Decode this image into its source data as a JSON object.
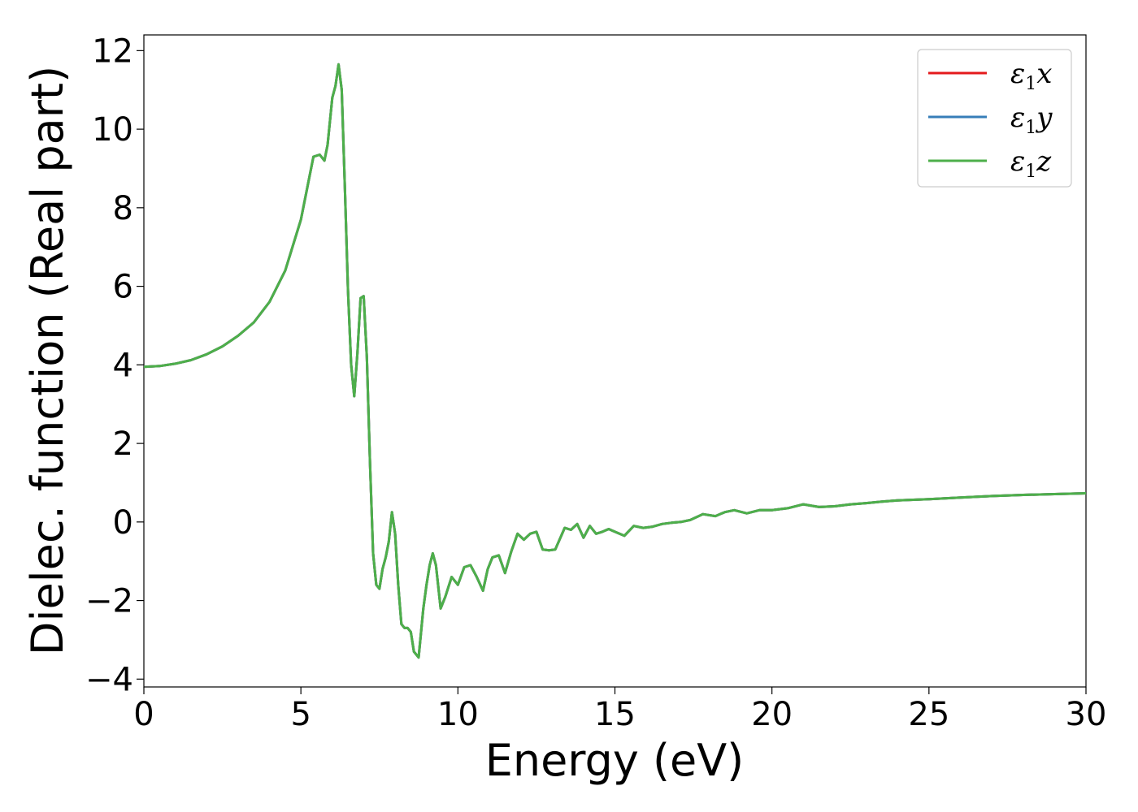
{
  "chart_data": {
    "type": "line",
    "xlabel": "Energy (eV)",
    "ylabel": "Dielec. function (Real part)",
    "xlim": [
      0,
      30
    ],
    "ylim": [
      -4.2,
      12.4
    ],
    "xticks": [
      0,
      5,
      10,
      15,
      20,
      25,
      30
    ],
    "yticks": [
      -4,
      -2,
      0,
      2,
      4,
      6,
      8,
      10,
      12
    ],
    "xtick_labels": [
      "0",
      "5",
      "10",
      "15",
      "20",
      "25",
      "30"
    ],
    "ytick_labels": [
      "−4",
      "−2",
      "0",
      "2",
      "4",
      "6",
      "8",
      "10",
      "12"
    ],
    "grid": false,
    "legend_position": "top-right",
    "x": [
      0,
      0.5,
      1,
      1.5,
      2,
      2.5,
      3,
      3.5,
      4,
      4.5,
      5,
      5.2,
      5.4,
      5.6,
      5.75,
      5.85,
      6.0,
      6.1,
      6.2,
      6.3,
      6.4,
      6.5,
      6.6,
      6.7,
      6.8,
      6.9,
      7.0,
      7.1,
      7.2,
      7.3,
      7.4,
      7.5,
      7.6,
      7.7,
      7.8,
      7.9,
      8.0,
      8.1,
      8.2,
      8.3,
      8.4,
      8.5,
      8.6,
      8.75,
      8.9,
      9.0,
      9.1,
      9.2,
      9.3,
      9.45,
      9.6,
      9.8,
      10.0,
      10.2,
      10.4,
      10.6,
      10.8,
      10.95,
      11.1,
      11.3,
      11.5,
      11.7,
      11.9,
      12.1,
      12.3,
      12.5,
      12.7,
      12.9,
      13.1,
      13.4,
      13.6,
      13.8,
      14.0,
      14.2,
      14.4,
      14.6,
      14.8,
      15.0,
      15.3,
      15.6,
      15.9,
      16.2,
      16.5,
      16.8,
      17.1,
      17.4,
      17.8,
      18.2,
      18.5,
      18.8,
      19.2,
      19.6,
      20.0,
      20.5,
      21.0,
      21.5,
      22.0,
      22.5,
      23.0,
      23.5,
      24.0,
      25.0,
      25.5,
      26.0,
      27.0,
      28.0,
      29.0,
      30.0
    ],
    "series": [
      {
        "name": "ε₁x",
        "color": "#e41a1c",
        "values": [
          3.95,
          3.97,
          4.03,
          4.12,
          4.27,
          4.47,
          4.74,
          5.08,
          5.6,
          6.4,
          7.7,
          8.5,
          9.3,
          9.35,
          9.2,
          9.6,
          10.8,
          11.1,
          11.65,
          11.0,
          8.5,
          5.9,
          4.0,
          3.2,
          4.3,
          5.7,
          5.75,
          4.2,
          1.5,
          -0.8,
          -1.6,
          -1.7,
          -1.2,
          -0.9,
          -0.5,
          0.25,
          -0.3,
          -1.6,
          -2.6,
          -2.7,
          -2.7,
          -2.8,
          -3.3,
          -3.45,
          -2.2,
          -1.6,
          -1.1,
          -0.8,
          -1.1,
          -2.2,
          -1.9,
          -1.4,
          -1.6,
          -1.15,
          -1.1,
          -1.4,
          -1.75,
          -1.2,
          -0.9,
          -0.85,
          -1.3,
          -0.75,
          -0.3,
          -0.45,
          -0.3,
          -0.25,
          -0.7,
          -0.72,
          -0.7,
          -0.15,
          -0.2,
          -0.05,
          -0.4,
          -0.1,
          -0.3,
          -0.25,
          -0.18,
          -0.25,
          -0.35,
          -0.1,
          -0.15,
          -0.12,
          -0.05,
          -0.02,
          0.0,
          0.05,
          0.2,
          0.15,
          0.25,
          0.3,
          0.22,
          0.3,
          0.3,
          0.35,
          0.45,
          0.38,
          0.4,
          0.45,
          0.48,
          0.52,
          0.55,
          0.58,
          0.6,
          0.62,
          0.66,
          0.69,
          0.71,
          0.73
        ]
      },
      {
        "name": "ε₁y",
        "color": "#377eb8",
        "values": [
          3.95,
          3.97,
          4.03,
          4.12,
          4.27,
          4.47,
          4.74,
          5.08,
          5.6,
          6.4,
          7.7,
          8.5,
          9.3,
          9.35,
          9.2,
          9.6,
          10.8,
          11.1,
          11.65,
          11.0,
          8.5,
          5.9,
          4.0,
          3.2,
          4.3,
          5.7,
          5.75,
          4.2,
          1.5,
          -0.8,
          -1.6,
          -1.7,
          -1.2,
          -0.9,
          -0.5,
          0.25,
          -0.3,
          -1.6,
          -2.6,
          -2.7,
          -2.7,
          -2.8,
          -3.3,
          -3.45,
          -2.2,
          -1.6,
          -1.1,
          -0.8,
          -1.1,
          -2.2,
          -1.9,
          -1.4,
          -1.6,
          -1.15,
          -1.1,
          -1.4,
          -1.75,
          -1.2,
          -0.9,
          -0.85,
          -1.3,
          -0.75,
          -0.3,
          -0.45,
          -0.3,
          -0.25,
          -0.7,
          -0.72,
          -0.7,
          -0.15,
          -0.2,
          -0.05,
          -0.4,
          -0.1,
          -0.3,
          -0.25,
          -0.18,
          -0.25,
          -0.35,
          -0.1,
          -0.15,
          -0.12,
          -0.05,
          -0.02,
          0.0,
          0.05,
          0.2,
          0.15,
          0.25,
          0.3,
          0.22,
          0.3,
          0.3,
          0.35,
          0.45,
          0.38,
          0.4,
          0.45,
          0.48,
          0.52,
          0.55,
          0.58,
          0.6,
          0.62,
          0.66,
          0.69,
          0.71,
          0.73
        ]
      },
      {
        "name": "ε₁z",
        "color": "#4daf4a",
        "values": [
          3.95,
          3.97,
          4.03,
          4.12,
          4.27,
          4.47,
          4.74,
          5.08,
          5.6,
          6.4,
          7.7,
          8.5,
          9.3,
          9.35,
          9.2,
          9.6,
          10.8,
          11.1,
          11.65,
          11.0,
          8.5,
          5.9,
          4.0,
          3.2,
          4.3,
          5.7,
          5.75,
          4.2,
          1.5,
          -0.8,
          -1.6,
          -1.7,
          -1.2,
          -0.9,
          -0.5,
          0.25,
          -0.3,
          -1.6,
          -2.6,
          -2.7,
          -2.7,
          -2.8,
          -3.3,
          -3.45,
          -2.2,
          -1.6,
          -1.1,
          -0.8,
          -1.1,
          -2.2,
          -1.9,
          -1.4,
          -1.6,
          -1.15,
          -1.1,
          -1.4,
          -1.75,
          -1.2,
          -0.9,
          -0.85,
          -1.3,
          -0.75,
          -0.3,
          -0.45,
          -0.3,
          -0.25,
          -0.7,
          -0.72,
          -0.7,
          -0.15,
          -0.2,
          -0.05,
          -0.4,
          -0.1,
          -0.3,
          -0.25,
          -0.18,
          -0.25,
          -0.35,
          -0.1,
          -0.15,
          -0.12,
          -0.05,
          -0.02,
          0.0,
          0.05,
          0.2,
          0.15,
          0.25,
          0.3,
          0.22,
          0.3,
          0.3,
          0.35,
          0.45,
          0.38,
          0.4,
          0.45,
          0.48,
          0.52,
          0.55,
          0.58,
          0.6,
          0.62,
          0.66,
          0.69,
          0.71,
          0.73
        ]
      }
    ],
    "legend": [
      {
        "symbol": "ε",
        "sub": "1",
        "axis": "x"
      },
      {
        "symbol": "ε",
        "sub": "1",
        "axis": "y"
      },
      {
        "symbol": "ε",
        "sub": "1",
        "axis": "z"
      }
    ]
  }
}
